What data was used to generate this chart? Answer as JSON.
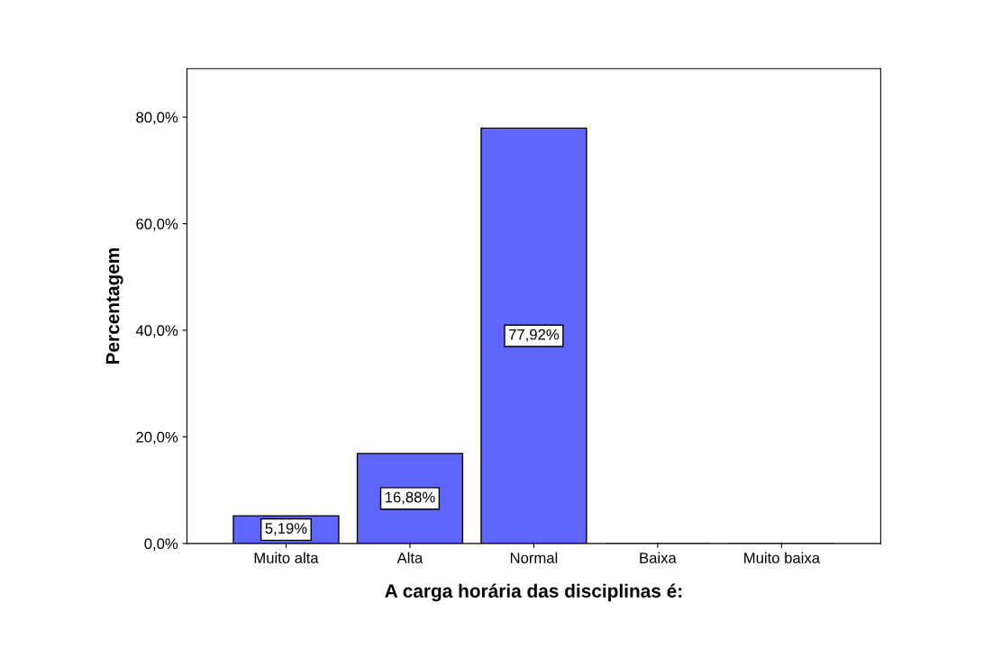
{
  "chart_data": {
    "type": "bar",
    "xlabel": "A carga horária das disciplinas é:",
    "ylabel": "Percentagem",
    "categories": [
      "Muito alta",
      "Alta",
      "Normal",
      "Baixa",
      "Muito baixa"
    ],
    "values": [
      5.19,
      16.88,
      77.92,
      0,
      0
    ],
    "value_labels": [
      "5,19%",
      "16,88%",
      "77,92%",
      null,
      null
    ],
    "color": "#5f66ff",
    "ylim": [
      0,
      89.1
    ],
    "yticks": [
      {
        "value": 0,
        "label": "0,0%"
      },
      {
        "value": 20,
        "label": "20,0%"
      },
      {
        "value": 40,
        "label": "40,0%"
      },
      {
        "value": 60,
        "label": "60,0%"
      },
      {
        "value": 80,
        "label": "80,0%"
      }
    ],
    "grid": false
  }
}
